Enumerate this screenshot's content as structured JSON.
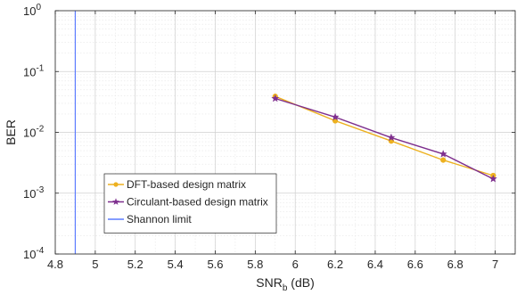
{
  "chart_data": {
    "type": "line",
    "title": "",
    "xlabel": "SNR",
    "xlabel_subscript": "b",
    "xlabel_unit": " (dB)",
    "ylabel": "BER",
    "yscale": "log",
    "xlim": [
      4.8,
      7.1
    ],
    "ylim": [
      0.0001,
      1
    ],
    "grid": true,
    "minor_grid": true,
    "legend_position": "lower-left",
    "x_ticks": [
      "4.8",
      "5",
      "5.2",
      "5.4",
      "5.6",
      "5.8",
      "6",
      "6.2",
      "6.4",
      "6.6",
      "6.8",
      "7"
    ],
    "y_ticks": [
      {
        "base": "10",
        "exp": "0"
      },
      {
        "base": "10",
        "exp": "-1"
      },
      {
        "base": "10",
        "exp": "-2"
      },
      {
        "base": "10",
        "exp": "-3"
      },
      {
        "base": "10",
        "exp": "-4"
      }
    ],
    "series": [
      {
        "name": "DFT-based design matrix",
        "color": "#EDB120",
        "marker": "circle",
        "x": [
          5.9,
          6.2,
          6.48,
          6.74,
          6.99
        ],
        "y": [
          0.039,
          0.0155,
          0.0072,
          0.0035,
          0.00195
        ]
      },
      {
        "name": "Circulant-based design matrix",
        "color": "#7E2F8E",
        "marker": "star",
        "x": [
          5.9,
          6.2,
          6.48,
          6.74,
          6.99
        ],
        "y": [
          0.036,
          0.0178,
          0.0082,
          0.0044,
          0.00172
        ]
      },
      {
        "name": "Shannon limit",
        "color": "#5B7BFF",
        "marker": "none",
        "type": "vline",
        "x_value": 4.9
      }
    ]
  }
}
